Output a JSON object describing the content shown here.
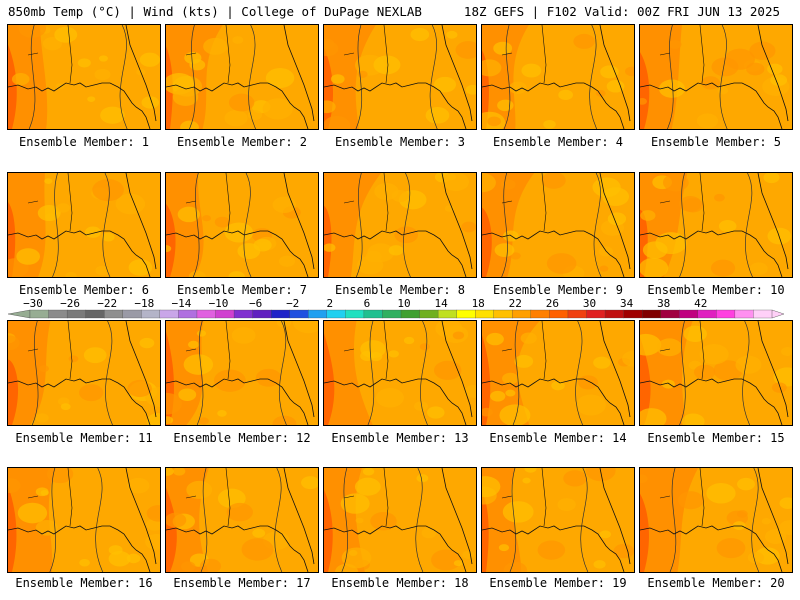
{
  "header": {
    "left": "850mb Temp (°C) | Wind (kts) | College of DuPage NEXLAB",
    "right": "18Z GEFS | F102 Valid: 00Z FRI JUN 13 2025"
  },
  "panel_label_prefix": "Ensemble Member:",
  "members": [
    1,
    2,
    3,
    4,
    5,
    6,
    7,
    8,
    9,
    10,
    11,
    12,
    13,
    14,
    15,
    16,
    17,
    18,
    19,
    20
  ],
  "colorbar": {
    "labels": [
      "−30",
      "−26",
      "−22",
      "−18",
      "−14",
      "−10",
      "−6",
      "−2",
      "2",
      "6",
      "10",
      "14",
      "18",
      "22",
      "26",
      "30",
      "34",
      "38",
      "42"
    ],
    "colors": [
      "#97ad93",
      "#8b8b8b",
      "#7a7a7a",
      "#666666",
      "#8f8f8f",
      "#9a9aa6",
      "#b4b4c8",
      "#c9a6e8",
      "#b070e0",
      "#e060e0",
      "#d040d0",
      "#8030d0",
      "#6020c0",
      "#1f22c8",
      "#2050e0",
      "#20a0f0",
      "#20d0f0",
      "#20e0c0",
      "#20c090",
      "#30b060",
      "#40a030",
      "#70b020",
      "#c0e020",
      "#ffff00",
      "#ffe000",
      "#ffc000",
      "#ffa000",
      "#ff8000",
      "#ff6000",
      "#f04010",
      "#e02020",
      "#c01010",
      "#a00000",
      "#800000",
      "#a00040",
      "#c00080",
      "#e020c0",
      "#ff40e0",
      "#ff90f0",
      "#ffd0f8"
    ]
  }
}
